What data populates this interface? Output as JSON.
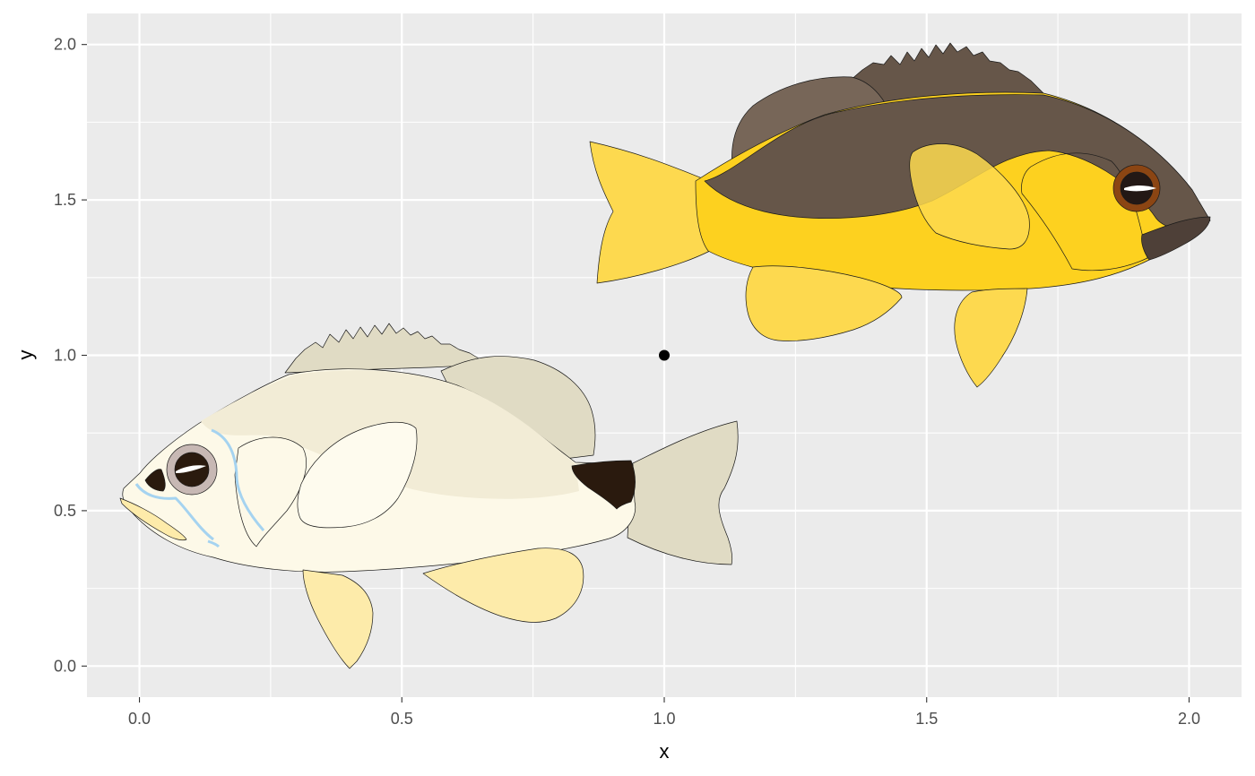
{
  "chart_data": {
    "type": "scatter",
    "xlabel": "x",
    "ylabel": "y",
    "xlim": [
      -0.1,
      2.1
    ],
    "ylim": [
      -0.1,
      2.1
    ],
    "x_ticks": [
      0.0,
      0.5,
      1.0,
      1.5,
      2.0
    ],
    "x_tick_labels": [
      "0.0",
      "0.5",
      "1.0",
      "1.5",
      "2.0"
    ],
    "y_ticks": [
      0.0,
      0.5,
      1.0,
      1.5,
      2.0
    ],
    "y_tick_labels": [
      "0.0",
      "0.5",
      "1.0",
      "1.5",
      "2.0"
    ],
    "grid": true,
    "points": [
      {
        "x": 1.0,
        "y": 1.0
      }
    ],
    "images": [
      {
        "name": "pale-fish-image",
        "xmin": 0.0,
        "xmax": 1.2,
        "ymin": 0.0,
        "ymax": 1.1,
        "facing": "left"
      },
      {
        "name": "yellow-fish-image",
        "xmin": 0.86,
        "xmax": 2.06,
        "ymin": 0.89,
        "ymax": 2.0,
        "facing": "right"
      }
    ]
  },
  "colors": {
    "panel_background": "#ebebeb",
    "grid_major": "#ffffff",
    "point": "#000000",
    "pale_fish_body": "#fdf9e8",
    "pale_fish_upper": "#f2ecd6",
    "pale_fish_fins": "#fdebaa",
    "pale_fish_tail": "#e0dbc4",
    "pale_fish_spot": "#2a1a0e",
    "pale_fish_lines": "#a5d3f0",
    "yellow_fish_body": "#fdd11f",
    "yellow_fish_fins": "#fdd94f",
    "yellow_fish_back": "#665649",
    "yellow_fish_dorsal": "#776658",
    "yellow_fish_eye_ring": "#8b4513"
  }
}
